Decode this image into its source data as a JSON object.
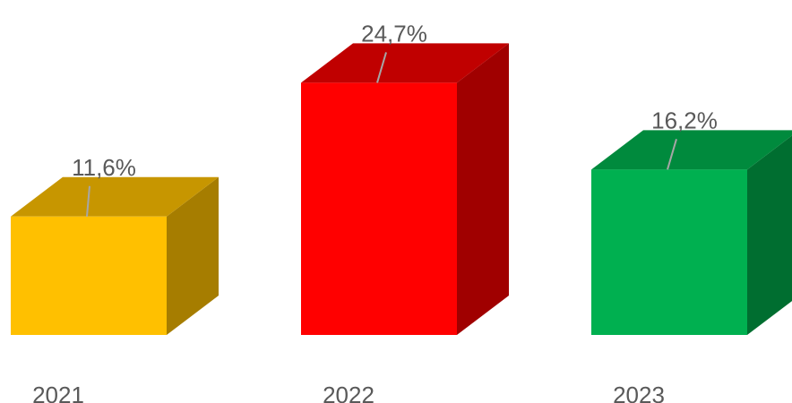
{
  "chart_data": {
    "type": "bar",
    "style": "3d-column",
    "categories": [
      "2021",
      "2022",
      "2023"
    ],
    "values": [
      11.6,
      24.7,
      16.2
    ],
    "data_labels": [
      "11,6%",
      "24,7%",
      "16,2%"
    ],
    "title": "",
    "xlabel": "",
    "ylabel": "",
    "ylim": [
      0,
      30
    ],
    "grid": false,
    "legend": "none",
    "colors": [
      {
        "front": "#FFC000",
        "top": "#C79600",
        "side": "#A67D00"
      },
      {
        "front": "#FF0000",
        "top": "#C00000",
        "side": "#A00000"
      },
      {
        "front": "#00B050",
        "top": "#008A3D",
        "side": "#006E30"
      }
    ],
    "leader_line_color": "#A6A6A6"
  }
}
